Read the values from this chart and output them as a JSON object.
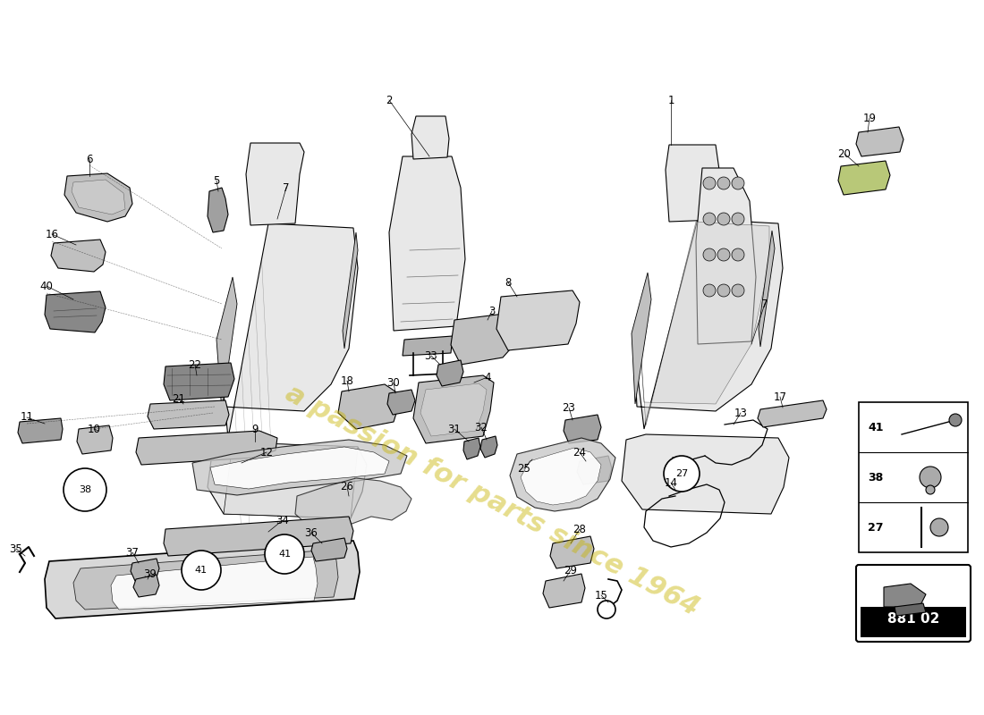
{
  "bg_color": "#ffffff",
  "fig_width": 11.0,
  "fig_height": 8.0,
  "watermark_lines": [
    "a passion for parts since 1964"
  ],
  "part_number": "881 02",
  "label_color": "#000000",
  "watermark_color": "#c8b400",
  "legend_items": [
    "41",
    "38",
    "27"
  ]
}
